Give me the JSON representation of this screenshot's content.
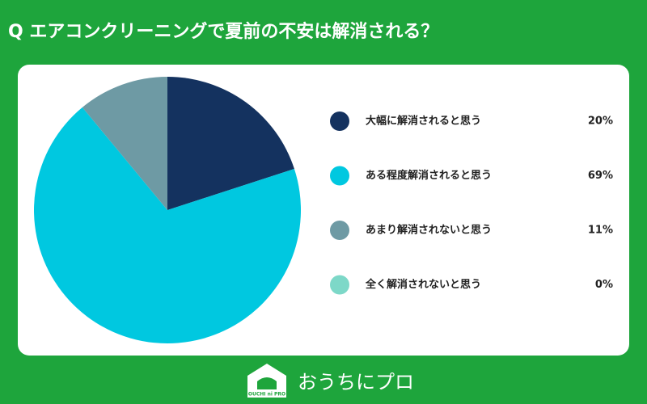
{
  "chart_data": {
    "type": "pie",
    "title": "Q エアコンクリーニングで夏前の不安は解消される？",
    "categories": [
      "大幅に解消されると思う",
      "ある程度解消されると思う",
      "あまり解消されないと思う",
      "全く解消されないと思う"
    ],
    "values": [
      20,
      69,
      11,
      0
    ],
    "value_labels": [
      "20%",
      "69%",
      "11%",
      "0%"
    ],
    "colors": [
      "#14325f",
      "#00c8e0",
      "#6e9aa4",
      "#7dd8c8"
    ]
  },
  "logo": {
    "text": "おうちにプロ",
    "mark": "OUCHI ni PRO"
  }
}
